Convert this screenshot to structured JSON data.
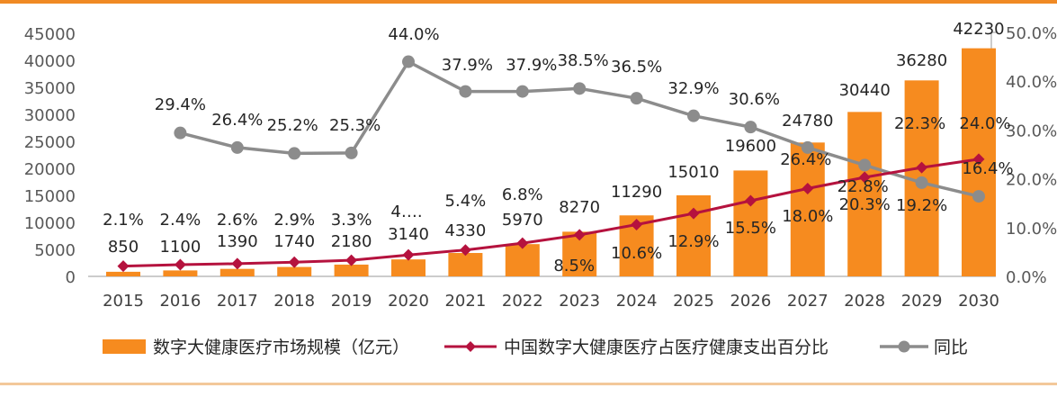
{
  "chart_data": {
    "type": "bar",
    "categories": [
      "2015",
      "2016",
      "2017",
      "2018",
      "2019",
      "2020",
      "2021",
      "2022",
      "2023",
      "2024",
      "2025",
      "2026",
      "2027",
      "2028",
      "2029",
      "2030"
    ],
    "y_left_ticks": [
      "45000",
      "40000",
      "35000",
      "30000",
      "25000",
      "20000",
      "15000",
      "10000",
      "5000",
      "0"
    ],
    "y_right_ticks": [
      "50.0%",
      "40.0%",
      "30.0%",
      "20.0%",
      "10.0%",
      "0.0%"
    ],
    "ylim_left": [
      0,
      45000
    ],
    "ylim_right": [
      0,
      50
    ],
    "grid": false,
    "legend_position": "bottom",
    "series": [
      {
        "name": "数字大健康医疗市场规模（亿元）",
        "type": "bar",
        "axis": "left",
        "color": "#f68b1f",
        "values": [
          850,
          1100,
          1390,
          1740,
          2180,
          3140,
          4330,
          5970,
          8270,
          11290,
          15010,
          19600,
          24780,
          30440,
          36280,
          42230
        ],
        "labels": [
          "850",
          "1100",
          "1390",
          "1740",
          "2180",
          "3140",
          "4330",
          "5970",
          "8270",
          "11290",
          "15010",
          "19600",
          "24780",
          "30440",
          "36280",
          "42230"
        ]
      },
      {
        "name": "中国数字大健康医疗占医疗健康支出百分比",
        "type": "line",
        "axis": "right",
        "color": "#b5123e",
        "values": [
          2.1,
          2.4,
          2.6,
          2.9,
          3.3,
          4.4,
          5.4,
          6.8,
          8.5,
          10.6,
          12.9,
          15.5,
          18.0,
          20.3,
          22.3,
          24.0
        ],
        "labels": [
          "2.1%",
          "2.4%",
          "2.6%",
          "2.9%",
          "3.3%",
          "4….",
          "5.4%",
          "6.8%",
          "8.5%",
          "10.6%",
          "12.9%",
          "15.5%",
          "18.0%",
          "20.3%",
          "22.3%",
          "24.0%"
        ]
      },
      {
        "name": "同比",
        "type": "line",
        "axis": "right",
        "color": "#8c8c8c",
        "values": [
          null,
          29.4,
          26.4,
          25.2,
          25.3,
          44.0,
          37.9,
          37.9,
          38.5,
          36.5,
          32.9,
          30.6,
          26.4,
          22.8,
          19.2,
          16.4
        ],
        "labels": [
          "",
          "29.4%",
          "26.4%",
          "25.2%",
          "25.3%",
          "44.0%",
          "37.9%",
          "37.9%",
          "38.5%",
          "36.5%",
          "32.9%",
          "30.6%",
          "26.4%",
          "22.8%",
          "19.2%",
          "16.4%"
        ]
      }
    ]
  }
}
